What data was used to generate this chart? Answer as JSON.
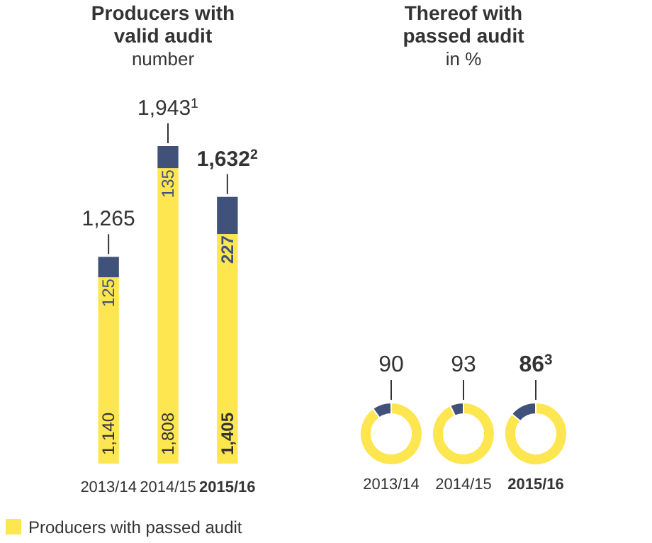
{
  "chart_data": [
    {
      "type": "bar",
      "title": "Producers with valid audit",
      "subtitle": "number",
      "categories": [
        "2013/14",
        "2014/15",
        "2015/16"
      ],
      "stacked": true,
      "legend": "bottom left",
      "series": [
        {
          "name": "Producers with passed audit",
          "color": "#fde64f",
          "values": [
            1140,
            1808,
            1405
          ],
          "value_labels": [
            "1,140",
            "1,808",
            "1,405"
          ]
        },
        {
          "color": "#41527a",
          "values": [
            125,
            135,
            227
          ],
          "value_labels": [
            "125",
            "135",
            "227"
          ]
        }
      ],
      "totals": [
        "1,265",
        "1,943$^{1}$",
        "1,632$^{2}$"
      ]
    },
    {
      "type": "donut",
      "xlabel": "2013/14",
      "categories": [
        null,
        null
      ],
      "values": [
        90,
        10
      ],
      "colors": [
        "#fde64f",
        "#41527a"
      ],
      "value_labels": [
        "90",
        null
      ]
    },
    {
      "type": "donut",
      "title": "Thereof with passed audit",
      "subtitle": "in %",
      "xlabel": "2014/15",
      "categories": [
        null,
        null
      ],
      "values": [
        93,
        7
      ],
      "colors": [
        "#fde64f",
        "#41527a"
      ],
      "value_labels": [
        "93",
        null
      ]
    },
    {
      "type": "donut",
      "xlabel": "2015/16",
      "categories": [
        null,
        null
      ],
      "values": [
        86,
        14
      ],
      "colors": [
        "#fde64f",
        "#41527a"
      ],
      "value_labels": [
        "86$^{3}$",
        null
      ]
    }
  ]
}
